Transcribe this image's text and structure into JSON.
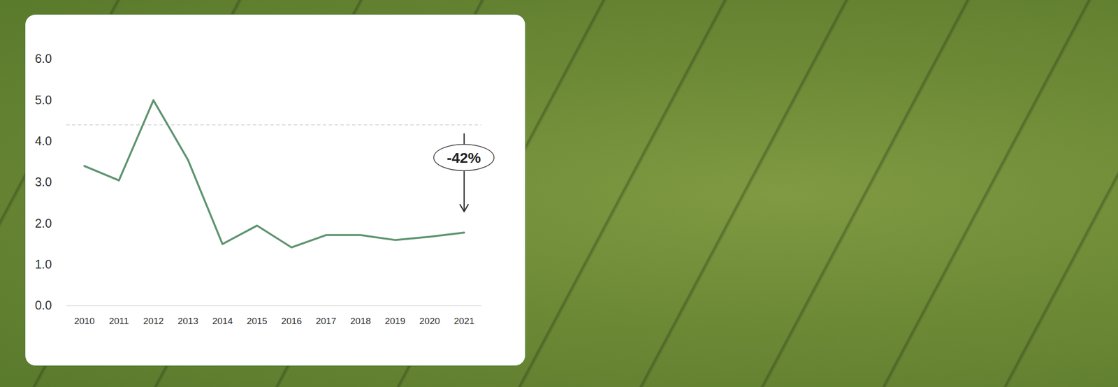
{
  "chart_data": {
    "type": "line",
    "categories": [
      "2010",
      "2011",
      "2012",
      "2013",
      "2014",
      "2015",
      "2016",
      "2017",
      "2018",
      "2019",
      "2020",
      "2021"
    ],
    "values": [
      3.4,
      3.05,
      5.0,
      3.55,
      1.5,
      1.95,
      1.42,
      1.72,
      1.72,
      1.6,
      1.68,
      1.78
    ],
    "color": "#5e9470",
    "ylim": [
      0,
      6
    ],
    "yticks": [
      0,
      1,
      2,
      3,
      4,
      5,
      6
    ],
    "grid": false,
    "reference_value": 4.4,
    "annotations": [
      {
        "text": "-42%",
        "x": "2021",
        "y_start": 4.18,
        "y_end": 2.29,
        "y_label": 3.6
      }
    ]
  }
}
